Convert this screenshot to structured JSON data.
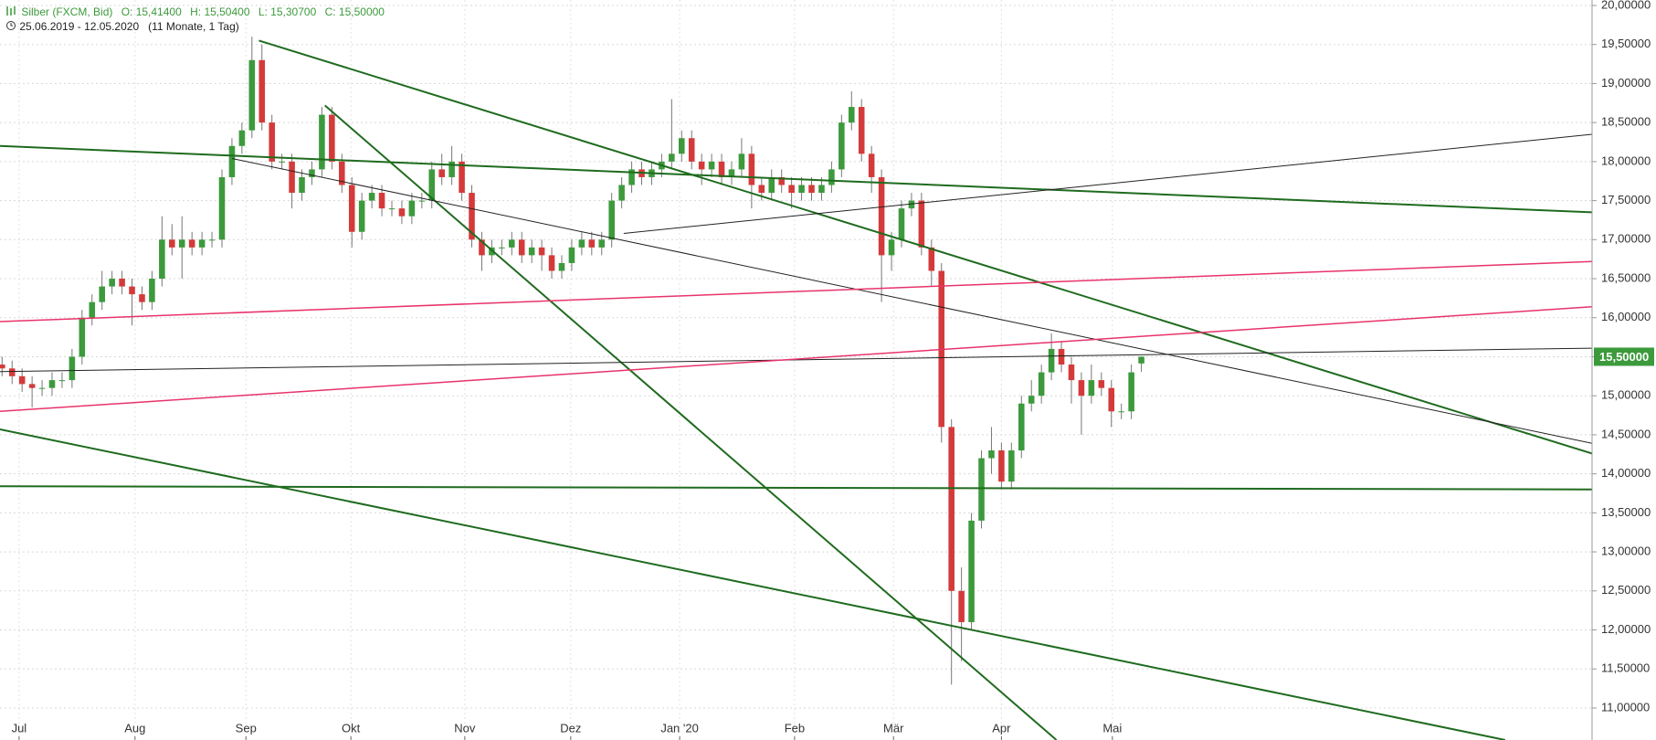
{
  "header": {
    "instrument": "Silber (FXCM, Bid)",
    "ohlc": [
      "O: 15,41400",
      "H: 15,50400",
      "L: 15,30700",
      "C: 15,50000"
    ],
    "period": "25.06.2019 - 12.05.2020",
    "span": "(11 Monate, 1 Tag)"
  },
  "chart_data": {
    "type": "candlestick",
    "categories": [
      null,
      null,
      null,
      null,
      null,
      null,
      null,
      null,
      null,
      null,
      null,
      null,
      null,
      null,
      null,
      null,
      null,
      null,
      null,
      null,
      null,
      null,
      null,
      null,
      null,
      null,
      null,
      null,
      null,
      null,
      null,
      null,
      null,
      null,
      null,
      null,
      null,
      null,
      null,
      null,
      null,
      null,
      null,
      null,
      null,
      null,
      null,
      null,
      null,
      null,
      null,
      null,
      null,
      null,
      null,
      null,
      null,
      null,
      null,
      null,
      null,
      null,
      null,
      null,
      null,
      null,
      null,
      null,
      null,
      null,
      null,
      null,
      null,
      null,
      null,
      null,
      null,
      null,
      null,
      null,
      null,
      null,
      null,
      null,
      null,
      null,
      null,
      null,
      null,
      null,
      null,
      null,
      null,
      null,
      null,
      null,
      null,
      null,
      null,
      null,
      null,
      null,
      null,
      null,
      null,
      null,
      null,
      null,
      null,
      null,
      null,
      null,
      null,
      null,
      null
    ],
    "open": [
      15.4,
      15.35,
      15.25,
      15.15,
      15.1,
      15.1,
      15.2,
      15.2,
      15.5,
      16.0,
      16.2,
      16.4,
      16.5,
      16.4,
      16.3,
      16.2,
      16.5,
      17.0,
      16.9,
      17.0,
      16.9,
      17.0,
      17.0,
      17.8,
      18.2,
      18.4,
      19.3,
      18.5,
      18.0,
      18.0,
      17.6,
      17.8,
      17.9,
      18.6,
      18.0,
      17.7,
      17.1,
      17.5,
      17.6,
      17.4,
      17.4,
      17.3,
      17.5,
      17.5,
      17.9,
      17.8,
      18.0,
      17.6,
      17.0,
      16.8,
      16.9,
      16.9,
      17.0,
      16.8,
      16.9,
      16.8,
      16.6,
      16.7,
      16.9,
      17.0,
      16.9,
      17.0,
      17.5,
      17.7,
      17.9,
      17.8,
      17.9,
      18.0,
      18.1,
      18.3,
      18.0,
      17.9,
      18.0,
      17.8,
      17.9,
      18.1,
      17.7,
      17.6,
      17.8,
      17.7,
      17.6,
      17.7,
      17.6,
      17.7,
      17.9,
      18.5,
      18.7,
      18.1,
      17.8,
      16.8,
      17.0,
      17.4,
      17.5,
      16.9,
      16.6,
      14.6,
      12.5,
      12.1,
      13.4,
      14.2,
      14.3,
      13.9,
      14.3,
      14.9,
      15.0,
      15.3,
      15.6,
      15.4,
      15.2,
      15.0,
      15.2,
      15.1,
      14.8,
      14.8,
      15.414
    ],
    "high": [
      15.5,
      15.45,
      15.35,
      15.25,
      15.2,
      15.3,
      15.3,
      15.6,
      16.1,
      16.3,
      16.6,
      16.6,
      16.6,
      16.5,
      16.4,
      16.6,
      17.3,
      17.2,
      17.3,
      17.1,
      17.1,
      17.1,
      17.9,
      18.3,
      18.5,
      19.6,
      19.5,
      18.6,
      18.1,
      18.1,
      17.9,
      18.0,
      18.7,
      18.7,
      18.1,
      17.8,
      17.6,
      17.7,
      17.7,
      17.5,
      17.5,
      17.6,
      17.6,
      18.0,
      18.1,
      18.2,
      18.1,
      17.7,
      17.1,
      17.0,
      17.0,
      17.1,
      17.1,
      17.0,
      17.0,
      16.9,
      16.8,
      17.0,
      17.1,
      17.1,
      17.1,
      17.6,
      17.8,
      18.0,
      18.0,
      18.0,
      18.1,
      18.8,
      18.4,
      18.4,
      18.1,
      18.1,
      18.1,
      18.0,
      18.3,
      18.2,
      17.8,
      17.9,
      17.9,
      17.8,
      17.8,
      17.8,
      17.8,
      18.0,
      18.6,
      18.9,
      18.8,
      18.2,
      17.9,
      17.1,
      17.5,
      17.6,
      17.6,
      17.0,
      16.7,
      14.7,
      12.8,
      13.5,
      14.3,
      14.6,
      14.4,
      14.4,
      15.0,
      15.2,
      15.4,
      15.8,
      15.7,
      15.5,
      15.3,
      15.4,
      15.3,
      15.2,
      14.9,
      15.4,
      15.504
    ],
    "low": [
      15.25,
      15.15,
      15.05,
      14.85,
      15.0,
      15.0,
      15.1,
      15.1,
      15.4,
      15.9,
      16.1,
      16.3,
      16.3,
      15.9,
      16.1,
      16.1,
      16.4,
      16.8,
      16.5,
      16.8,
      16.8,
      16.9,
      16.9,
      17.7,
      18.1,
      18.3,
      18.4,
      17.9,
      17.9,
      17.4,
      17.5,
      17.7,
      17.8,
      17.9,
      17.6,
      16.9,
      17.0,
      17.4,
      17.3,
      17.3,
      17.2,
      17.2,
      17.4,
      17.4,
      17.7,
      17.7,
      17.5,
      16.9,
      16.6,
      16.7,
      16.8,
      16.8,
      16.7,
      16.7,
      16.6,
      16.5,
      16.5,
      16.6,
      16.8,
      16.8,
      16.8,
      16.9,
      17.4,
      17.6,
      17.7,
      17.7,
      17.8,
      17.9,
      18.0,
      17.9,
      17.7,
      17.8,
      17.7,
      17.7,
      17.8,
      17.4,
      17.5,
      17.5,
      17.6,
      17.4,
      17.5,
      17.5,
      17.5,
      17.6,
      17.8,
      18.4,
      18.0,
      17.6,
      16.2,
      16.6,
      16.9,
      17.3,
      16.8,
      16.4,
      14.4,
      11.3,
      11.6,
      12.0,
      13.3,
      14.0,
      13.8,
      13.8,
      14.2,
      14.8,
      14.9,
      15.2,
      15.3,
      14.9,
      14.5,
      14.9,
      15.0,
      14.6,
      14.7,
      14.7,
      15.307
    ],
    "close": [
      15.35,
      15.25,
      15.15,
      15.1,
      15.1,
      15.2,
      15.2,
      15.5,
      16.0,
      16.2,
      16.4,
      16.5,
      16.4,
      16.3,
      16.2,
      16.5,
      17.0,
      16.9,
      17.0,
      16.9,
      17.0,
      17.0,
      17.8,
      18.2,
      18.4,
      19.3,
      18.5,
      18.0,
      18.0,
      17.6,
      17.8,
      17.9,
      18.6,
      18.0,
      17.7,
      17.1,
      17.5,
      17.6,
      17.4,
      17.4,
      17.3,
      17.5,
      17.5,
      17.9,
      17.8,
      18.0,
      17.6,
      17.0,
      16.8,
      16.9,
      16.9,
      17.0,
      16.8,
      16.9,
      16.8,
      16.6,
      16.7,
      16.9,
      17.0,
      16.9,
      17.0,
      17.5,
      17.7,
      17.9,
      17.8,
      17.9,
      18.0,
      18.1,
      18.3,
      18.0,
      17.9,
      18.0,
      17.8,
      17.9,
      18.1,
      17.7,
      17.6,
      17.8,
      17.7,
      17.6,
      17.7,
      17.6,
      17.7,
      17.9,
      18.5,
      18.7,
      18.1,
      17.8,
      16.8,
      17.0,
      17.4,
      17.5,
      16.9,
      16.6,
      14.6,
      12.5,
      12.1,
      13.4,
      14.2,
      14.3,
      13.9,
      14.3,
      14.9,
      15.0,
      15.3,
      15.6,
      15.4,
      15.2,
      15.0,
      15.2,
      15.1,
      14.8,
      14.8,
      15.3,
      15.5
    ],
    "up_color": "#3c9a3c",
    "down_color": "#d43a3a",
    "grid": true,
    "xlim": [
      -0.21,
      159.1
    ],
    "xticks": [
      {
        "value": 1.7,
        "label": "Jul"
      },
      {
        "value": 13.3,
        "label": "Aug"
      },
      {
        "value": 24.4,
        "label": "Sep"
      },
      {
        "value": 34.9,
        "label": "Okt"
      },
      {
        "value": 46.3,
        "label": "Nov"
      },
      {
        "value": 56.9,
        "label": "Dez"
      },
      {
        "value": 67.8,
        "label": "Jan '20"
      },
      {
        "value": 79.3,
        "label": "Feb"
      },
      {
        "value": 89.2,
        "label": "Mär"
      },
      {
        "value": 100,
        "label": "Apr"
      },
      {
        "value": 111.1,
        "label": "Mai"
      }
    ],
    "ylim": [
      10.59,
      20.07
    ],
    "yticks": [
      {
        "value": 11,
        "label": "11,00000"
      },
      {
        "value": 11.5,
        "label": "11,50000"
      },
      {
        "value": 12,
        "label": "12,00000"
      },
      {
        "value": 12.5,
        "label": "12,50000"
      },
      {
        "value": 13,
        "label": "13,00000"
      },
      {
        "value": 13.5,
        "label": "13,50000"
      },
      {
        "value": 14,
        "label": "14,00000"
      },
      {
        "value": 14.5,
        "label": "14,50000"
      },
      {
        "value": 15,
        "label": "15,00000"
      },
      {
        "value": 15.5,
        "label": "15,50000"
      },
      {
        "value": 16,
        "label": "16,00000"
      },
      {
        "value": 16.5,
        "label": "16,50000"
      },
      {
        "value": 17,
        "label": "17,00000"
      },
      {
        "value": 17.5,
        "label": "17,50000"
      },
      {
        "value": 18,
        "label": "18,00000"
      },
      {
        "value": 18.5,
        "label": "18,50000"
      },
      {
        "value": 19,
        "label": "19,00000"
      },
      {
        "value": 19.5,
        "label": "19,50000"
      },
      {
        "value": 20,
        "label": "20,00000"
      }
    ],
    "last_price_label": "15,50000",
    "trendlines": [
      {
        "color": "#1f6b1f",
        "width": 2,
        "x": [
          25.7,
          159.1
        ],
        "y": [
          19.55,
          14.26
        ]
      },
      {
        "color": "#1f6b1f",
        "width": 2,
        "x": [
          -0.21,
          159.1
        ],
        "y": [
          18.2,
          17.35
        ]
      },
      {
        "color": "#1f6b1f",
        "width": 2,
        "x": [
          32.3,
          105.5
        ],
        "y": [
          18.72,
          10.59
        ]
      },
      {
        "color": "#1f6b1f",
        "width": 2,
        "x": [
          -0.21,
          150.4
        ],
        "y": [
          14.57,
          10.59
        ]
      },
      {
        "color": "#1f6b1f",
        "width": 2,
        "x": [
          -0.21,
          159.1
        ],
        "y": [
          13.84,
          13.8
        ]
      },
      {
        "color": "#222222",
        "width": 1,
        "x": [
          23.0,
          159.1
        ],
        "y": [
          18.04,
          14.39
        ]
      },
      {
        "color": "#222222",
        "width": 1,
        "x": [
          62.2,
          159.1
        ],
        "y": [
          17.08,
          18.35
        ]
      },
      {
        "color": "#222222",
        "width": 1,
        "x": [
          -0.21,
          159.1
        ],
        "y": [
          15.31,
          15.61
        ]
      },
      {
        "color": "#e8336b",
        "width": 1.5,
        "x": [
          -0.21,
          159.1
        ],
        "y": [
          15.95,
          16.72
        ]
      },
      {
        "color": "#e8336b",
        "width": 1.5,
        "x": [
          -0.21,
          159.1
        ],
        "y": [
          14.8,
          16.14
        ]
      }
    ]
  }
}
